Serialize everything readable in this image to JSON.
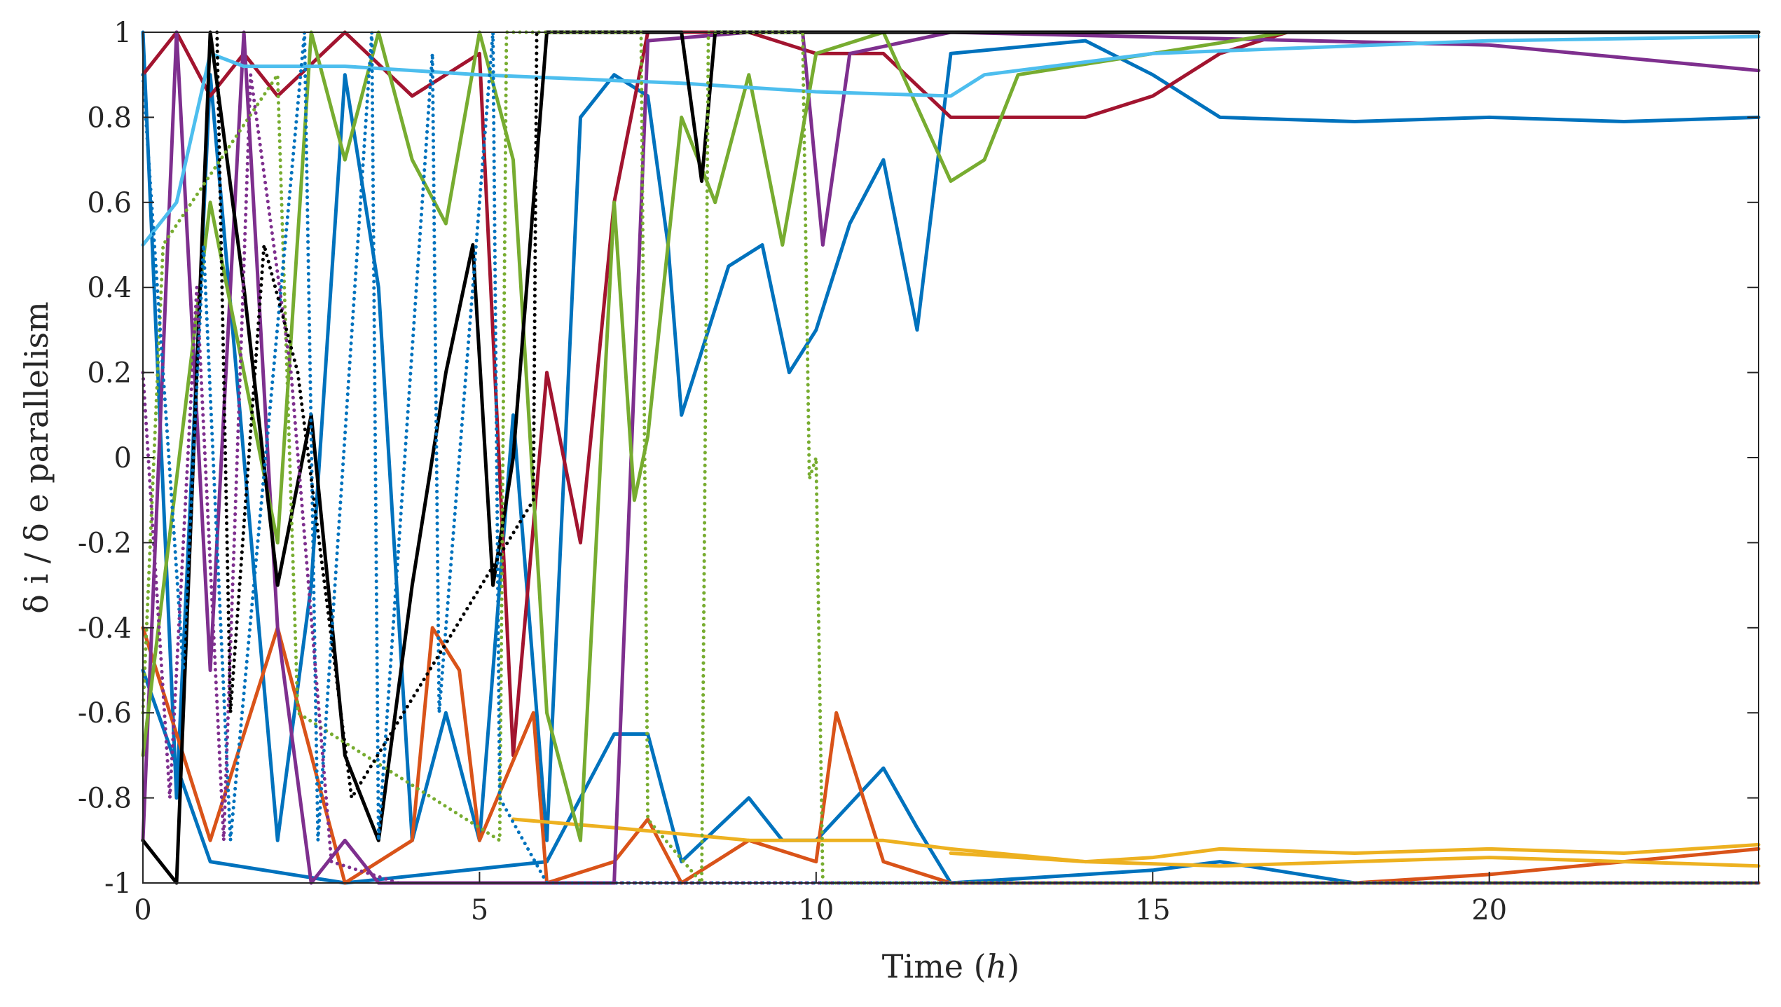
{
  "chart_data": {
    "type": "line",
    "title": "",
    "xlabel_text": "Time (",
    "xlabel_var": "h",
    "xlabel_close": ")",
    "ylabel": "δ i / δ e parallelism",
    "xlim": [
      0,
      24
    ],
    "ylim": [
      -1,
      1
    ],
    "grid": false,
    "legend": "none",
    "xticks": [
      0,
      5,
      10,
      15,
      20
    ],
    "xtick_labels": [
      "0",
      "5",
      "10",
      "15",
      "20"
    ],
    "yticks": [
      -1,
      -0.8,
      -0.6,
      -0.4,
      -0.2,
      0,
      0.2,
      0.4,
      0.6,
      0.8,
      1
    ],
    "ytick_labels": [
      "-1",
      "-0.8",
      "-0.6",
      "-0.4",
      "-0.2",
      "0",
      "0.2",
      "0.4",
      "0.6",
      "0.8",
      "1"
    ],
    "series": [
      {
        "name": "blue-1",
        "color": "#0072BD",
        "style": "solid",
        "points": [
          [
            0,
            1
          ],
          [
            0.5,
            -0.8
          ],
          [
            1,
            0.9
          ],
          [
            2,
            -0.9
          ],
          [
            2.5,
            -0.3
          ],
          [
            3,
            0.9
          ],
          [
            3.5,
            0.4
          ],
          [
            4,
            -0.9
          ],
          [
            4.5,
            -0.6
          ],
          [
            5,
            -0.9
          ],
          [
            5.5,
            0.1
          ],
          [
            6,
            -0.9
          ],
          [
            6.5,
            0.8
          ],
          [
            7,
            0.9
          ],
          [
            7.5,
            0.85
          ],
          [
            7.8,
            0.5
          ],
          [
            8,
            0.1
          ],
          [
            8.3,
            0.25
          ],
          [
            8.7,
            0.45
          ],
          [
            9.2,
            0.5
          ],
          [
            9.6,
            0.2
          ],
          [
            10,
            0.3
          ],
          [
            10.5,
            0.55
          ],
          [
            11,
            0.7
          ],
          [
            11.5,
            0.3
          ],
          [
            12,
            0.95
          ],
          [
            14,
            0.98
          ],
          [
            15,
            0.9
          ],
          [
            16,
            0.8
          ],
          [
            18,
            0.79
          ],
          [
            20,
            0.8
          ],
          [
            22,
            0.79
          ],
          [
            24,
            0.8
          ]
        ]
      },
      {
        "name": "blue-2",
        "color": "#0072BD",
        "style": "solid",
        "points": [
          [
            0,
            -0.5
          ],
          [
            1,
            -0.95
          ],
          [
            3,
            -1
          ],
          [
            6,
            -0.95
          ],
          [
            7,
            -0.65
          ],
          [
            7.5,
            -0.65
          ],
          [
            8,
            -0.95
          ],
          [
            9,
            -0.8
          ],
          [
            9.5,
            -0.9
          ],
          [
            10,
            -0.9
          ],
          [
            11,
            -0.73
          ],
          [
            11.5,
            -0.87
          ],
          [
            12,
            -1
          ],
          [
            15,
            -0.97
          ],
          [
            16,
            -0.95
          ],
          [
            18,
            -1
          ],
          [
            24,
            -1
          ]
        ]
      },
      {
        "name": "red",
        "color": "#A2142F",
        "style": "solid",
        "points": [
          [
            0,
            0.9
          ],
          [
            0.5,
            1
          ],
          [
            1,
            0.85
          ],
          [
            1.5,
            0.95
          ],
          [
            2,
            0.85
          ],
          [
            3,
            1
          ],
          [
            4,
            0.85
          ],
          [
            5,
            0.95
          ],
          [
            5.5,
            -0.7
          ],
          [
            6,
            0.2
          ],
          [
            6.5,
            -0.2
          ],
          [
            7,
            0.6
          ],
          [
            7.5,
            1
          ],
          [
            9,
            1
          ],
          [
            10,
            0.95
          ],
          [
            11,
            0.95
          ],
          [
            12,
            0.8
          ],
          [
            14,
            0.8
          ],
          [
            15,
            0.85
          ],
          [
            16,
            0.95
          ],
          [
            17,
            1
          ],
          [
            24,
            1
          ]
        ]
      },
      {
        "name": "orange-1",
        "color": "#D95319",
        "style": "solid",
        "points": [
          [
            0,
            -0.4
          ],
          [
            1,
            -0.9
          ],
          [
            2,
            -0.4
          ],
          [
            3,
            -1
          ],
          [
            4,
            -0.9
          ],
          [
            4.3,
            -0.4
          ],
          [
            4.7,
            -0.5
          ],
          [
            5,
            -0.9
          ],
          [
            5.8,
            -0.6
          ],
          [
            6,
            -1
          ],
          [
            7,
            -0.95
          ],
          [
            7.5,
            -0.85
          ],
          [
            8,
            -1
          ],
          [
            9,
            -0.9
          ],
          [
            10,
            -0.95
          ],
          [
            10.3,
            -0.6
          ],
          [
            10.5,
            -0.7
          ],
          [
            11,
            -0.95
          ],
          [
            12,
            -1
          ],
          [
            24,
            -1
          ]
        ]
      },
      {
        "name": "orange-2",
        "color": "#D95319",
        "style": "solid",
        "points": [
          [
            12,
            -1
          ],
          [
            18,
            -1
          ],
          [
            20,
            -0.98
          ],
          [
            22,
            -0.95
          ],
          [
            24,
            -0.92
          ]
        ]
      },
      {
        "name": "yellow-1",
        "color": "#EDB120",
        "style": "solid",
        "points": [
          [
            5.5,
            -0.85
          ],
          [
            7,
            -0.87
          ],
          [
            9,
            -0.9
          ],
          [
            11,
            -0.9
          ],
          [
            12,
            -0.92
          ],
          [
            14,
            -0.95
          ],
          [
            15,
            -0.94
          ],
          [
            16,
            -0.92
          ],
          [
            18,
            -0.93
          ],
          [
            20,
            -0.92
          ],
          [
            22,
            -0.93
          ],
          [
            24,
            -0.91
          ]
        ]
      },
      {
        "name": "yellow-2",
        "color": "#EDB120",
        "style": "solid",
        "points": [
          [
            12,
            -0.93
          ],
          [
            14,
            -0.95
          ],
          [
            16,
            -0.96
          ],
          [
            18,
            -0.95
          ],
          [
            20,
            -0.94
          ],
          [
            22,
            -0.95
          ],
          [
            24,
            -0.96
          ]
        ]
      },
      {
        "name": "purple",
        "color": "#7E2F8E",
        "style": "solid",
        "points": [
          [
            0,
            -0.9
          ],
          [
            0.5,
            1
          ],
          [
            1,
            -0.5
          ],
          [
            1.5,
            1
          ],
          [
            2,
            -0.4
          ],
          [
            2.5,
            -1
          ],
          [
            3,
            -0.9
          ],
          [
            3.5,
            -1
          ],
          [
            6,
            -1
          ],
          [
            7,
            -1
          ],
          [
            7.5,
            0.98
          ],
          [
            9,
            1
          ],
          [
            9.8,
            1
          ],
          [
            10.1,
            0.5
          ],
          [
            10.5,
            0.95
          ],
          [
            12,
            1
          ],
          [
            20,
            0.97
          ],
          [
            24,
            0.91
          ]
        ]
      },
      {
        "name": "green",
        "color": "#77AC30",
        "style": "solid",
        "points": [
          [
            0,
            -0.7
          ],
          [
            1,
            0.6
          ],
          [
            2,
            -0.2
          ],
          [
            2.5,
            1
          ],
          [
            3,
            0.7
          ],
          [
            3.5,
            1
          ],
          [
            4,
            0.7
          ],
          [
            4.5,
            0.55
          ],
          [
            5,
            1
          ],
          [
            5.5,
            0.7
          ],
          [
            6,
            -0.6
          ],
          [
            6.5,
            -0.9
          ],
          [
            7,
            0.6
          ],
          [
            7.3,
            -0.1
          ],
          [
            7.5,
            0.05
          ],
          [
            8,
            0.8
          ],
          [
            8.5,
            0.6
          ],
          [
            9,
            0.9
          ],
          [
            9.5,
            0.5
          ],
          [
            10,
            0.95
          ],
          [
            11,
            1
          ],
          [
            12,
            0.65
          ],
          [
            12.5,
            0.7
          ],
          [
            13,
            0.9
          ],
          [
            15,
            0.95
          ],
          [
            17,
            1
          ],
          [
            24,
            1
          ]
        ]
      },
      {
        "name": "light-blue",
        "color": "#4DBEEE",
        "style": "solid",
        "points": [
          [
            0,
            0.5
          ],
          [
            0.5,
            0.6
          ],
          [
            1,
            0.95
          ],
          [
            1.5,
            0.92
          ],
          [
            3,
            0.92
          ],
          [
            5,
            0.9
          ],
          [
            8,
            0.88
          ],
          [
            10,
            0.86
          ],
          [
            12,
            0.85
          ],
          [
            12.5,
            0.9
          ],
          [
            15,
            0.95
          ],
          [
            20,
            0.98
          ],
          [
            24,
            0.99
          ]
        ]
      },
      {
        "name": "black",
        "color": "#000000",
        "style": "solid",
        "points": [
          [
            0,
            -0.9
          ],
          [
            0.5,
            -1
          ],
          [
            1,
            1
          ],
          [
            1.5,
            0.4
          ],
          [
            2,
            -0.3
          ],
          [
            2.5,
            0.1
          ],
          [
            3,
            -0.7
          ],
          [
            3.5,
            -0.9
          ],
          [
            4,
            -0.3
          ],
          [
            4.5,
            0.2
          ],
          [
            4.9,
            0.5
          ],
          [
            5.2,
            -0.3
          ],
          [
            5.5,
            0
          ],
          [
            6,
            1
          ],
          [
            8,
            1
          ],
          [
            8.3,
            0.65
          ],
          [
            8.5,
            1
          ],
          [
            24,
            1
          ]
        ]
      },
      {
        "name": "green-dotted",
        "color": "#77AC30",
        "style": "dotted",
        "points": [
          [
            0,
            -0.6
          ],
          [
            0.3,
            0.5
          ],
          [
            2,
            0.9
          ],
          [
            2.3,
            -0.6
          ],
          [
            5.3,
            -0.9
          ],
          [
            5.4,
            1
          ],
          [
            7.4,
            1
          ],
          [
            7.5,
            -0.85
          ],
          [
            8.3,
            -1
          ],
          [
            8.4,
            1
          ],
          [
            9.8,
            1
          ],
          [
            9.9,
            -0.05
          ],
          [
            10,
            0
          ],
          [
            10.1,
            -1
          ],
          [
            12,
            -1
          ],
          [
            24,
            -1
          ]
        ]
      },
      {
        "name": "blue-dotted",
        "color": "#0072BD",
        "style": "dotted",
        "points": [
          [
            0,
            0.9
          ],
          [
            0.6,
            -0.5
          ],
          [
            0.9,
            0.5
          ],
          [
            1.3,
            -0.9
          ],
          [
            2.4,
            1
          ],
          [
            2.6,
            -0.9
          ],
          [
            3.4,
            1
          ],
          [
            3.5,
            -0.9
          ],
          [
            4.3,
            0.95
          ],
          [
            4.4,
            -0.6
          ],
          [
            5.2,
            1
          ],
          [
            5.3,
            -0.8
          ],
          [
            6,
            -1
          ],
          [
            24,
            -1
          ]
        ]
      },
      {
        "name": "purple-dotted",
        "color": "#7E2F8E",
        "style": "dotted",
        "points": [
          [
            0,
            0.2
          ],
          [
            0.4,
            -0.8
          ],
          [
            0.8,
            0.4
          ],
          [
            1.2,
            -0.9
          ],
          [
            1.6,
            0.9
          ],
          [
            2.2,
            0.2
          ],
          [
            2.8,
            -0.95
          ],
          [
            3.8,
            -1
          ],
          [
            5,
            -1
          ],
          [
            24,
            -1
          ]
        ]
      },
      {
        "name": "black-dotted",
        "color": "#000000",
        "style": "dotted",
        "points": [
          [
            1.1,
            1
          ],
          [
            1.3,
            -0.6
          ],
          [
            1.8,
            0.5
          ],
          [
            2.3,
            0.2
          ],
          [
            3.1,
            -0.8
          ],
          [
            5.8,
            -0.1
          ],
          [
            5.85,
            1
          ]
        ]
      }
    ]
  }
}
